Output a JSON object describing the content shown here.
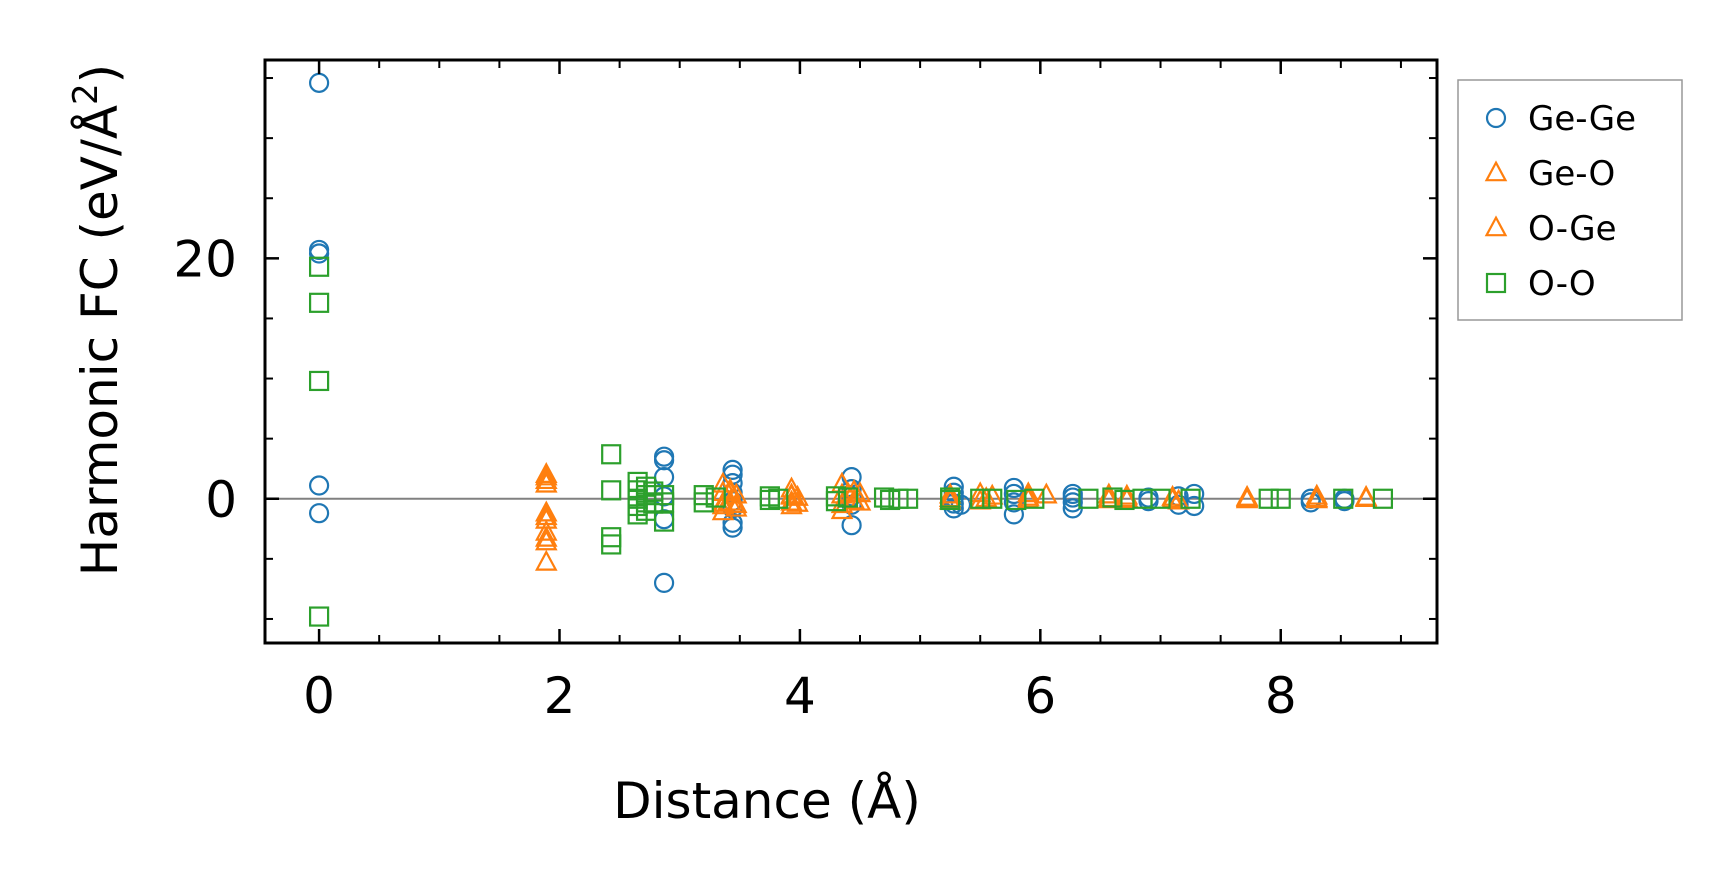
{
  "chart_data": {
    "type": "scatter",
    "xlabel": "Distance (Å)",
    "ylabel_main": "Harmonic FC (eV/Å",
    "ylabel_sup": "2",
    "ylabel_close": ")",
    "xlim": [
      -0.45,
      9.3
    ],
    "ylim": [
      -12,
      36.5
    ],
    "xticks": [
      0,
      2,
      4,
      6,
      8
    ],
    "xtick_labels": [
      "0",
      "2",
      "4",
      "6",
      "8"
    ],
    "yticks": [
      0,
      20
    ],
    "ytick_labels": [
      "0",
      "20"
    ],
    "x_minor_step": 0.5,
    "y_minor_step": 5,
    "zero_line": true,
    "legend_position": "outside-right-top",
    "series": [
      {
        "name": "Ge-Ge",
        "marker": "circle",
        "color": "#1f77b4",
        "points": [
          [
            0,
            34.6
          ],
          [
            0,
            20.7
          ],
          [
            0,
            20.4
          ],
          [
            0,
            1.1
          ],
          [
            0,
            -1.2
          ],
          [
            2.87,
            3.5
          ],
          [
            2.87,
            3.2
          ],
          [
            2.87,
            1.8
          ],
          [
            2.87,
            0.2
          ],
          [
            2.87,
            -1.7
          ],
          [
            2.87,
            -7.0
          ],
          [
            3.44,
            2.4
          ],
          [
            3.44,
            2.0
          ],
          [
            3.44,
            1.3
          ],
          [
            3.44,
            0.5
          ],
          [
            3.44,
            -0.2
          ],
          [
            3.44,
            -0.8
          ],
          [
            3.44,
            -2.0
          ],
          [
            3.44,
            -2.4
          ],
          [
            4.43,
            1.8
          ],
          [
            4.43,
            0.8
          ],
          [
            4.43,
            0.2
          ],
          [
            4.43,
            -0.5
          ],
          [
            4.43,
            -2.2
          ],
          [
            5.28,
            1.0
          ],
          [
            5.28,
            0.5
          ],
          [
            5.28,
            0.1
          ],
          [
            5.28,
            -0.4
          ],
          [
            5.28,
            -0.8
          ],
          [
            5.34,
            -0.5
          ],
          [
            5.78,
            0.9
          ],
          [
            5.78,
            0.4
          ],
          [
            5.78,
            -0.3
          ],
          [
            5.78,
            -1.3
          ],
          [
            6.27,
            0.4
          ],
          [
            6.27,
            0.1
          ],
          [
            6.27,
            -0.3
          ],
          [
            6.27,
            -0.8
          ],
          [
            6.9,
            0.1
          ],
          [
            6.9,
            -0.2
          ],
          [
            7.15,
            0.2
          ],
          [
            7.15,
            -0.5
          ],
          [
            7.28,
            0.4
          ],
          [
            7.28,
            -0.6
          ],
          [
            8.25,
            0.0
          ],
          [
            8.25,
            -0.3
          ],
          [
            8.53,
            0.0
          ],
          [
            8.53,
            -0.2
          ]
        ]
      },
      {
        "name": "Ge-O",
        "marker": "triangle",
        "color": "#ff7f0e",
        "points": [
          [
            1.89,
            2.0
          ],
          [
            1.89,
            1.5
          ],
          [
            1.89,
            1.2
          ],
          [
            1.89,
            -1.2
          ],
          [
            1.89,
            -1.8
          ],
          [
            1.89,
            -2.8
          ],
          [
            1.89,
            -3.6
          ],
          [
            3.36,
            1.2
          ],
          [
            3.36,
            0.5
          ],
          [
            3.36,
            -0.6
          ],
          [
            3.36,
            -1.1
          ],
          [
            3.42,
            0.7
          ],
          [
            3.42,
            -0.3
          ],
          [
            3.47,
            0.3
          ],
          [
            3.47,
            -0.8
          ],
          [
            3.93,
            0.8
          ],
          [
            3.93,
            0.2
          ],
          [
            3.93,
            -0.6
          ],
          [
            3.98,
            0.1
          ],
          [
            3.98,
            -0.4
          ],
          [
            4.35,
            1.2
          ],
          [
            4.35,
            0.3
          ],
          [
            4.35,
            -1.0
          ],
          [
            4.4,
            0.4
          ],
          [
            4.45,
            -0.2
          ],
          [
            4.5,
            0.4
          ],
          [
            4.5,
            -0.3
          ],
          [
            5.25,
            0.3
          ],
          [
            5.25,
            -0.2
          ],
          [
            5.5,
            0.4
          ],
          [
            5.5,
            -0.2
          ],
          [
            5.6,
            0.2
          ],
          [
            5.9,
            0.4
          ],
          [
            5.9,
            -0.1
          ],
          [
            6.05,
            0.3
          ],
          [
            6.57,
            0.3
          ],
          [
            6.57,
            -0.1
          ],
          [
            6.72,
            0.2
          ],
          [
            6.72,
            -0.1
          ],
          [
            7.1,
            0.1
          ],
          [
            7.15,
            -0.2
          ],
          [
            7.72,
            0.1
          ],
          [
            7.72,
            -0.1
          ],
          [
            8.3,
            0.2
          ],
          [
            8.3,
            -0.1
          ],
          [
            8.71,
            0.1
          ]
        ]
      },
      {
        "name": "O-Ge",
        "marker": "triangle",
        "color": "#ff7f0e",
        "points": [
          [
            1.89,
            1.8
          ],
          [
            1.89,
            -1.5
          ],
          [
            1.89,
            -3.3
          ],
          [
            1.89,
            -5.3
          ],
          [
            3.36,
            -0.4
          ],
          [
            3.42,
            0.5
          ],
          [
            3.47,
            -0.5
          ],
          [
            3.93,
            0.3
          ],
          [
            3.93,
            -0.3
          ],
          [
            4.35,
            -0.5
          ],
          [
            4.45,
            0.6
          ],
          [
            5.25,
            0.0
          ],
          [
            5.55,
            0.0
          ],
          [
            5.9,
            0.1
          ],
          [
            6.57,
            0.0
          ],
          [
            6.72,
            0.0
          ],
          [
            7.1,
            -0.1
          ],
          [
            7.72,
            0.0
          ],
          [
            8.3,
            0.0
          ],
          [
            8.71,
            0.0
          ]
        ]
      },
      {
        "name": "O-O",
        "marker": "square",
        "color": "#2ca02c",
        "points": [
          [
            0,
            19.3
          ],
          [
            0,
            16.3
          ],
          [
            0,
            9.8
          ],
          [
            0,
            -9.8
          ],
          [
            2.43,
            3.7
          ],
          [
            2.43,
            0.7
          ],
          [
            2.43,
            -3.2
          ],
          [
            2.43,
            -3.8
          ],
          [
            2.65,
            1.4
          ],
          [
            2.65,
            0.7
          ],
          [
            2.65,
            0.0
          ],
          [
            2.65,
            -0.6
          ],
          [
            2.65,
            -1.3
          ],
          [
            2.72,
            1.0
          ],
          [
            2.72,
            0.3
          ],
          [
            2.72,
            -0.3
          ],
          [
            2.72,
            -1.0
          ],
          [
            2.78,
            0.6
          ],
          [
            2.78,
            -0.4
          ],
          [
            2.87,
            0.3
          ],
          [
            2.87,
            -0.3
          ],
          [
            2.87,
            -1.9
          ],
          [
            3.2,
            0.3
          ],
          [
            3.2,
            -0.3
          ],
          [
            3.3,
            0.1
          ],
          [
            3.75,
            0.2
          ],
          [
            3.75,
            -0.1
          ],
          [
            3.82,
            0.0
          ],
          [
            4.3,
            0.2
          ],
          [
            4.3,
            -0.2
          ],
          [
            4.4,
            0.1
          ],
          [
            4.7,
            0.1
          ],
          [
            4.75,
            -0.1
          ],
          [
            4.82,
            0.0
          ],
          [
            4.9,
            0.0
          ],
          [
            5.25,
            0.1
          ],
          [
            5.25,
            -0.1
          ],
          [
            5.5,
            0.0
          ],
          [
            5.6,
            0.0
          ],
          [
            5.8,
            -0.1
          ],
          [
            5.95,
            0.0
          ],
          [
            6.4,
            0.0
          ],
          [
            6.6,
            0.1
          ],
          [
            6.7,
            -0.1
          ],
          [
            6.85,
            0.0
          ],
          [
            7.0,
            0.0
          ],
          [
            7.25,
            0.0
          ],
          [
            7.9,
            0.0
          ],
          [
            8.0,
            0.0
          ],
          [
            8.52,
            0.0
          ],
          [
            8.85,
            0.0
          ]
        ]
      }
    ]
  }
}
